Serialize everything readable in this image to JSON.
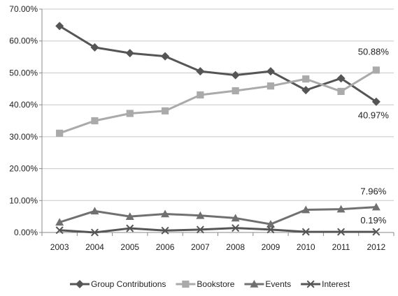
{
  "chart_data": {
    "type": "line",
    "title": "",
    "xlabel": "",
    "ylabel": "",
    "categories": [
      "2003",
      "2004",
      "2005",
      "2006",
      "2007",
      "2008",
      "2009",
      "2010",
      "2011",
      "2012"
    ],
    "ylim": [
      0,
      70
    ],
    "yticks": [
      0,
      10,
      20,
      30,
      40,
      50,
      60,
      70
    ],
    "ytick_labels": [
      "0.00%",
      "10.00%",
      "20.00%",
      "30.00%",
      "40.00%",
      "50.00%",
      "60.00%",
      "70.00%"
    ],
    "grid": "horizontal",
    "legend_position": "bottom",
    "series": [
      {
        "name": "Group Contributions",
        "marker": "diamond",
        "color": "#555555",
        "values": [
          64.7,
          58.0,
          56.2,
          55.2,
          50.5,
          49.3,
          50.5,
          44.6,
          48.3,
          40.97
        ]
      },
      {
        "name": "Bookstore",
        "marker": "square",
        "color": "#aaaaaa",
        "values": [
          31.1,
          35.0,
          37.3,
          38.1,
          43.1,
          44.4,
          45.9,
          48.1,
          44.2,
          50.88
        ]
      },
      {
        "name": "Events",
        "marker": "triangle",
        "color": "#707070",
        "values": [
          3.2,
          6.7,
          5.0,
          5.8,
          5.3,
          4.5,
          2.6,
          7.1,
          7.3,
          7.96
        ]
      },
      {
        "name": "Interest",
        "marker": "x",
        "color": "#555555",
        "values": [
          0.7,
          0.0,
          1.3,
          0.6,
          0.9,
          1.4,
          0.9,
          0.2,
          0.2,
          0.19
        ]
      }
    ],
    "annotations": [
      {
        "text": "50.88%",
        "series": 1,
        "index": 9
      },
      {
        "text": "40.97%",
        "series": 0,
        "index": 9
      },
      {
        "text": "7.96%",
        "series": 2,
        "index": 9
      },
      {
        "text": "0.19%",
        "series": 3,
        "index": 9
      }
    ]
  }
}
